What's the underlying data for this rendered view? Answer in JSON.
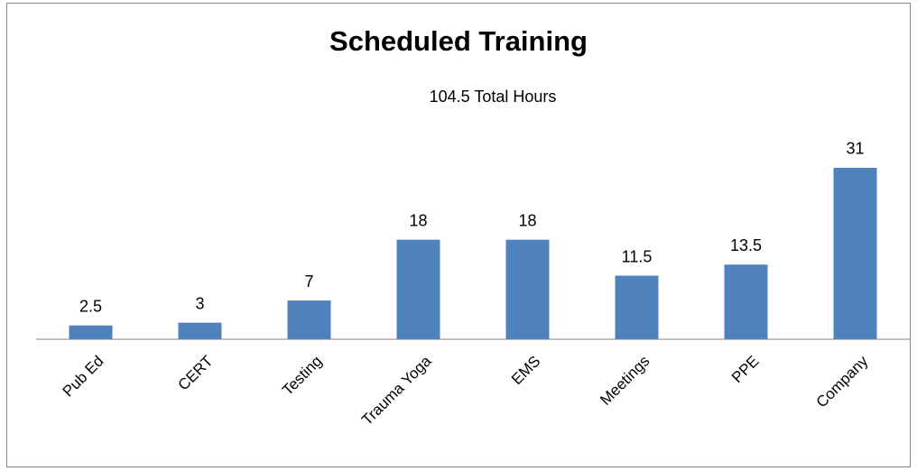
{
  "chart_data": {
    "type": "bar",
    "title": "Scheduled Training",
    "subtitle": "104.5 Total Hours",
    "categories": [
      "Pub Ed",
      "CERT",
      "Testing",
      "Trauma Yoga",
      "EMS",
      "Meetings",
      "PPE",
      "Company"
    ],
    "values": [
      2.5,
      3,
      7,
      18,
      18,
      11.5,
      13.5,
      31
    ],
    "color": "#4f81bd",
    "ylim": [
      0,
      35
    ],
    "grid": false
  }
}
